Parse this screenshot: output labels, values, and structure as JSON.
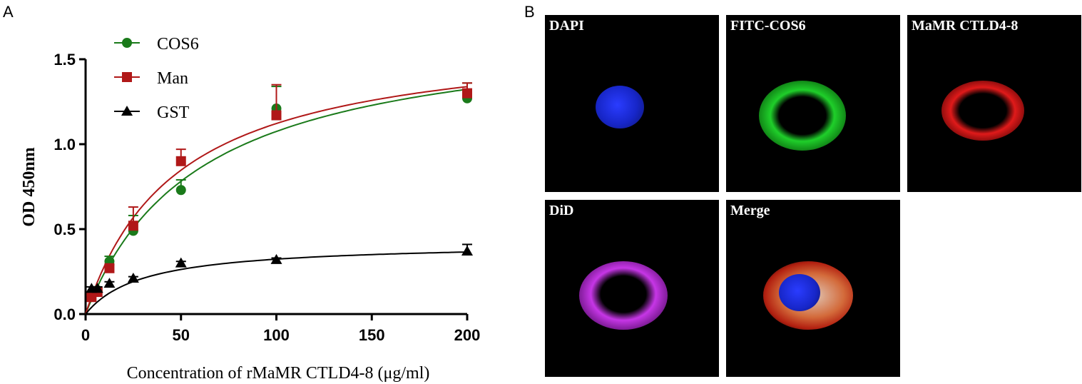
{
  "panel_a_label": "A",
  "panel_b_label": "B",
  "chart_data": {
    "type": "scatter",
    "xlabel": "Concentration of rMaMR CTLD4-8 (μg/ml)",
    "ylabel": "OD 450nm",
    "xlim": [
      0,
      200
    ],
    "ylim": [
      0,
      1.5
    ],
    "xticks": [
      "0",
      "50",
      "100",
      "150",
      "200"
    ],
    "yticks": [
      "0.0",
      "0.5",
      "1.0",
      "1.5"
    ],
    "legend_position": "top-left",
    "series": [
      {
        "name": "COS6",
        "color": "#1a7a1a",
        "marker": "circle",
        "x": [
          3.125,
          6.25,
          12.5,
          25,
          50,
          100,
          200
        ],
        "y": [
          0.12,
          0.14,
          0.31,
          0.49,
          0.73,
          1.21,
          1.27
        ],
        "err": [
          0.01,
          0.01,
          0.03,
          0.09,
          0.06,
          0.13,
          0.09
        ],
        "fit": {
          "bmax": 1.72,
          "kd": 60
        }
      },
      {
        "name": "Man",
        "color": "#b01818",
        "marker": "square",
        "x": [
          3.125,
          6.25,
          12.5,
          25,
          50,
          100,
          200
        ],
        "y": [
          0.1,
          0.13,
          0.27,
          0.52,
          0.9,
          1.17,
          1.3
        ],
        "err": [
          0.01,
          0.01,
          0.02,
          0.11,
          0.07,
          0.18,
          0.06
        ],
        "fit": {
          "bmax": 1.66,
          "kd": 48
        }
      },
      {
        "name": "GST",
        "color": "#000000",
        "marker": "triangle",
        "x": [
          3.125,
          6.25,
          12.5,
          25,
          50,
          100,
          200
        ],
        "y": [
          0.15,
          0.15,
          0.18,
          0.21,
          0.3,
          0.32,
          0.37
        ],
        "err": [
          0.01,
          0.01,
          0.01,
          0.01,
          0.01,
          0.01,
          0.04
        ],
        "fit": {
          "bmax": 0.42,
          "kd": 30
        }
      }
    ]
  },
  "micrographs": [
    {
      "label": "DAPI",
      "color": "#1a2bd6"
    },
    {
      "label": "FITC-COS6",
      "color": "#1fcf2a"
    },
    {
      "label": "MaMR CTLD4-8",
      "color": "#e01a1a"
    },
    {
      "label": "DiD",
      "color": "#b02ad0"
    },
    {
      "label": "Merge",
      "color": "#d8a070"
    }
  ]
}
